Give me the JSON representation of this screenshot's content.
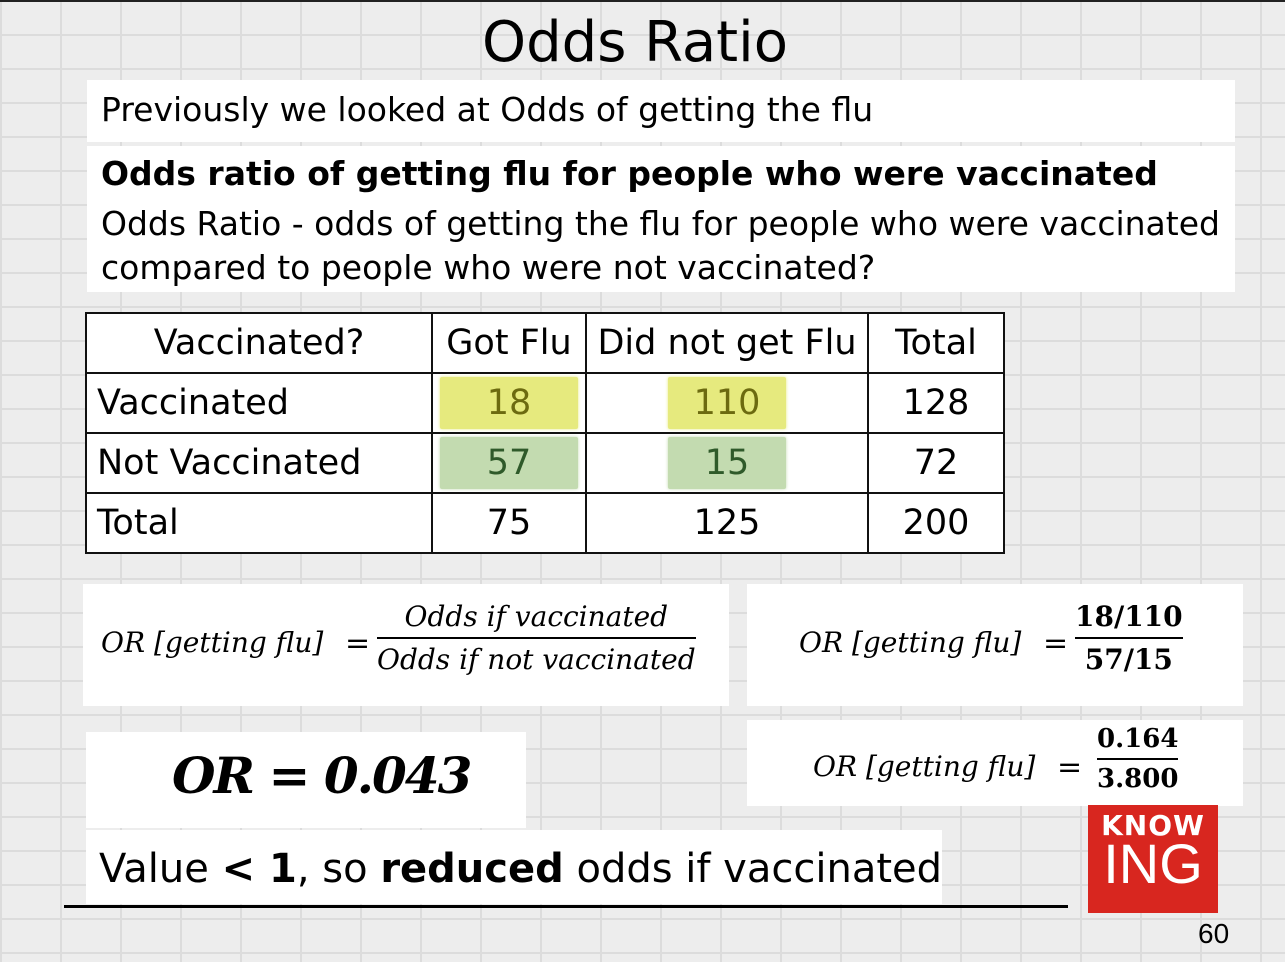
{
  "slide": {
    "title": "Odds Ratio",
    "intro": "Previously we looked at Odds of getting the flu",
    "definition_heading": "Odds ratio of getting flu for people who were vaccinated",
    "definition_body": "Odds Ratio - odds of getting the flu for people who were vaccinated compared to people who were not vaccinated?",
    "page_number": "60"
  },
  "table": {
    "headers": [
      "Vaccinated?",
      "Got Flu",
      "Did not get Flu",
      "Total"
    ],
    "rows": [
      {
        "label": "Vaccinated",
        "got_flu": "18",
        "no_flu": "110",
        "total": "128"
      },
      {
        "label": "Not Vaccinated",
        "got_flu": "57",
        "no_flu": "15",
        "total": "72"
      },
      {
        "label": "Total",
        "got_flu": "75",
        "no_flu": "125",
        "total": "200"
      }
    ],
    "highlight_colors": {
      "vaccinated_row": "#e6ea7e",
      "not_vaccinated_row": "#c3dbb0"
    }
  },
  "formulas": {
    "lhs": "OR [getting flu]",
    "equals": "=",
    "general": {
      "numerator": "Odds if vaccinated",
      "denominator": "Odds if not vaccinated"
    },
    "substituted": {
      "numerator": "18/110",
      "denominator": "57/15"
    },
    "computed": {
      "numerator": "0.164",
      "denominator": "3.800"
    }
  },
  "result": {
    "value": "OR = 0.043"
  },
  "conclusion": {
    "prefix": "Value ",
    "comparison": "< 1",
    "middle": ", so ",
    "emphasis": "reduced",
    "suffix": " odds if vaccinated"
  },
  "logo": {
    "top": "KNOW",
    "bottom": "ING",
    "color": "#d8261f"
  }
}
